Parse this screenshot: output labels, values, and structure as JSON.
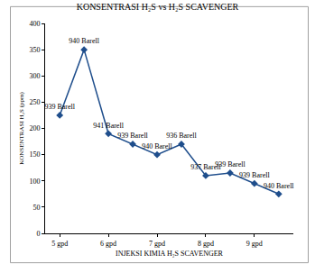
{
  "chart_data": {
    "type": "line",
    "title": "KONSENTRASI H₂S vs H₂S SCAVENGER",
    "x_label": "INJEKSI KIMIA H₂S SCAVENGER",
    "y_label": "KONSENTRASI H₂S (ppm)",
    "categories": [
      "5 gpd",
      null,
      "6 gpd",
      null,
      "7 gpd",
      null,
      "8 gpd",
      null,
      "9 gpd",
      null
    ],
    "values": [
      225,
      350,
      190,
      170,
      150,
      170,
      110,
      115,
      95,
      75
    ],
    "annotations": [
      "939 Barell",
      "940 Barell",
      "941 Barell",
      "939 Barell",
      "940 Barell",
      "936 Barell",
      "937 Barell",
      "939 Barell",
      "939 Barell",
      "940 Barell"
    ],
    "color": "#1f4e8c",
    "marker": "diamond",
    "ylim": [
      0,
      400
    ],
    "yticks": [
      0,
      50,
      100,
      150,
      200,
      250,
      300,
      350,
      400
    ],
    "grid": false
  }
}
